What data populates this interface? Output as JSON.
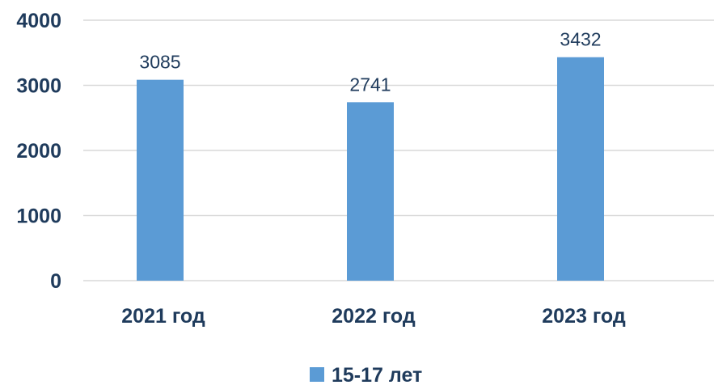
{
  "chart_data": {
    "type": "bar",
    "categories": [
      "2021 год",
      "2022 год",
      "2023 год"
    ],
    "series": [
      {
        "name": "15-17 лет",
        "values": [
          3085,
          2741,
          3432
        ],
        "color": "#5b9bd5"
      }
    ],
    "data_labels": [
      "3085",
      "2741",
      "3432"
    ],
    "y_ticks": [
      "0",
      "1000",
      "2000",
      "3000",
      "4000"
    ],
    "ylim": [
      0,
      4000
    ],
    "grid": true,
    "legend_position": "bottom"
  }
}
